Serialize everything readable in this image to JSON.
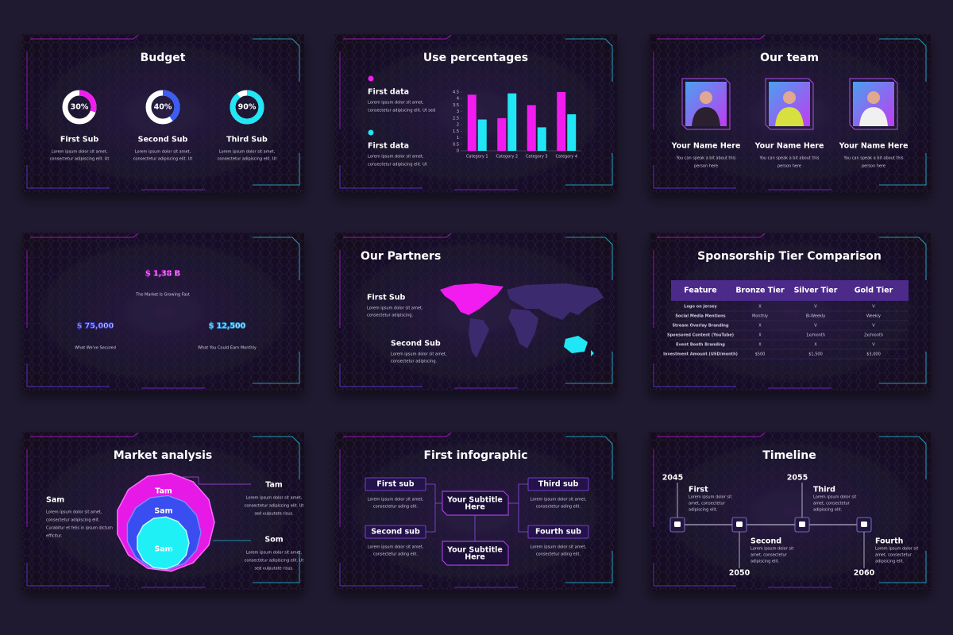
{
  "slides": [
    {
      "title": "Budget",
      "items": [
        {
          "percent": 30,
          "percent_label": "30%",
          "color": "#f21cf0",
          "name": "First Sub",
          "lines": [
            "Lorem ipsum dolor sit amet,",
            "consectetur adipiscing elit. Ut"
          ]
        },
        {
          "percent": 40,
          "percent_label": "40%",
          "color": "#3b5cf5",
          "name": "Second Sub",
          "lines": [
            "Lorem ipsum dolor sit amet,",
            "consectetur adipiscing elit. Ut"
          ]
        },
        {
          "percent": 90,
          "percent_label": "90%",
          "color": "#21e6f5",
          "name": "Third Sub",
          "lines": [
            "Lorem ipsum dolor sit amet,",
            "consectetur adipiscing elit. Ut"
          ]
        }
      ]
    },
    {
      "title": "Use percentages",
      "legend": [
        {
          "name": "First data",
          "color": "#f21cf0",
          "lines": [
            "Lorem ipsum dolor sit amet,",
            "consectetur adipiscing elit. Ut sed"
          ]
        },
        {
          "name": "First data",
          "color": "#21e6f5",
          "lines": [
            "Lorem ipsum dolor sit amet,",
            "consectetur adipiscing elit. Ut"
          ]
        }
      ],
      "chart": {
        "type": "bar",
        "categories": [
          "Category 1",
          "Category 2",
          "Category 3",
          "Category 4"
        ],
        "series": [
          {
            "color": "#f21cf0",
            "values": [
              4.3,
              2.5,
              3.5,
              4.5
            ]
          },
          {
            "color": "#21e6f5",
            "values": [
              2.4,
              4.4,
              1.8,
              2.8
            ]
          }
        ],
        "ylim": [
          0,
          4.5
        ],
        "yticks": [
          0,
          0.5,
          1,
          1.5,
          2,
          2.5,
          3,
          3.5,
          4,
          4.5
        ]
      }
    },
    {
      "title": "Our team",
      "members": [
        {
          "name": "Your Name Here",
          "lines": [
            "You can speak a bit about this",
            "person here"
          ]
        },
        {
          "name": "Your Name Here",
          "lines": [
            "You can speak a bit about this",
            "person here"
          ]
        },
        {
          "name": "Your Name Here",
          "lines": [
            "You can speak a bit about this",
            "person here"
          ]
        }
      ]
    },
    {
      "figures": [
        {
          "amount": "$ 1,38 B",
          "caption": "The Market Is Growing Fast",
          "color": "#b21cc8"
        },
        {
          "amount": "$ 75,000",
          "caption": "What We've Secured",
          "color": "#3a3fd0"
        },
        {
          "amount": "$ 12,500",
          "caption": "What You Could Earn Monthly",
          "color": "#2a9fd8"
        }
      ]
    },
    {
      "title": "Our Partners",
      "items": [
        {
          "name": "First Sub",
          "color": "#f21cf0",
          "lines": [
            "Lorem ipsum dolor sit amet,",
            "consectetur adipiscing."
          ]
        },
        {
          "name": "Second Sub",
          "color": "#21e6f5",
          "lines": [
            "Lorem ipsum dolor sit amet,",
            "consectetur adipiscing."
          ]
        }
      ]
    },
    {
      "title": "Sponsorship Tier Comparison",
      "table": {
        "header": [
          "Feature",
          "Bronze Tier",
          "Silver Tier",
          "Gold Tier"
        ],
        "rows": [
          [
            "Logo on Jersey",
            "X",
            "V",
            "V"
          ],
          [
            "Social Media Mentions",
            "Monthly",
            "Bi-Weekly",
            "Weekly"
          ],
          [
            "Stream Overlay Branding",
            "X",
            "V",
            "V"
          ],
          [
            "Sponsored Content (YouTube)",
            "X",
            "1x/month",
            "2x/month"
          ],
          [
            "Event Booth Branding",
            "X",
            "X",
            "V"
          ],
          [
            "Investment Amount (USD/month)",
            "$500",
            "$1,500",
            "$3,000"
          ]
        ]
      }
    },
    {
      "title": "Market analysis",
      "layers": [
        "Tam",
        "Sam",
        "Sam"
      ],
      "notes": [
        {
          "name": "Sam",
          "lines": [
            "Lorem ipsum dolor sit amet,",
            "consectetur adipiscing elit.",
            "Curabitur et felis in ipsum dictum",
            "efficitur."
          ]
        },
        {
          "name": "Tam",
          "lines": [
            "Lorem ipsum dolor sit amet,",
            "consectetur adipiscing elit. Ut",
            "sed vulputate risus."
          ]
        },
        {
          "name": "Som",
          "lines": [
            "Lorem ipsum dolor sit amet,",
            "consectetur adipiscing elit. Ut",
            "sed vulputate risus."
          ]
        }
      ]
    },
    {
      "title": "First infographic",
      "subs": [
        {
          "name": "First sub",
          "lines": [
            "Lorem ipsum dolor sit amet,",
            "consectetur ading elit."
          ]
        },
        {
          "name": "Second sub",
          "lines": [
            "Lorem ipsum dolor sit amet,",
            "consectetur ading elit."
          ]
        },
        {
          "name": "Third sub",
          "lines": [
            "Lorem ipsum dolor sit amet,",
            "consectetur ading elit."
          ]
        },
        {
          "name": "Fourth sub",
          "lines": [
            "Lorem ipsum dolor sit amet,",
            "consectetur ading elit."
          ]
        }
      ],
      "centers": [
        [
          "Your Subtitle",
          "Here"
        ],
        [
          "Your Subtitle",
          "Here"
        ]
      ]
    },
    {
      "title": "Timeline",
      "events": [
        {
          "year": "2045",
          "color": "#f21cf0",
          "name": "First",
          "lines": [
            "Lorem ipsum dolor sit",
            "amet, consectetur",
            "adipiscing elit."
          ]
        },
        {
          "year": "2050",
          "color": "#3b7cf5",
          "name": "Second",
          "lines": [
            "Lorem ipsum dolor sit",
            "amet, consectetur",
            "adipiscing elit."
          ]
        },
        {
          "year": "2055",
          "color": "#21e6f5",
          "name": "Third",
          "lines": [
            "Lorem ipsum dolor sit",
            "amet, consectetur",
            "adipiscing elit."
          ]
        },
        {
          "year": "2060",
          "color": "#f21cf0",
          "name": "Fourth",
          "lines": [
            "Lorem ipsum dolor sit",
            "amet, consectetur",
            "adipiscing elit."
          ]
        }
      ]
    }
  ]
}
